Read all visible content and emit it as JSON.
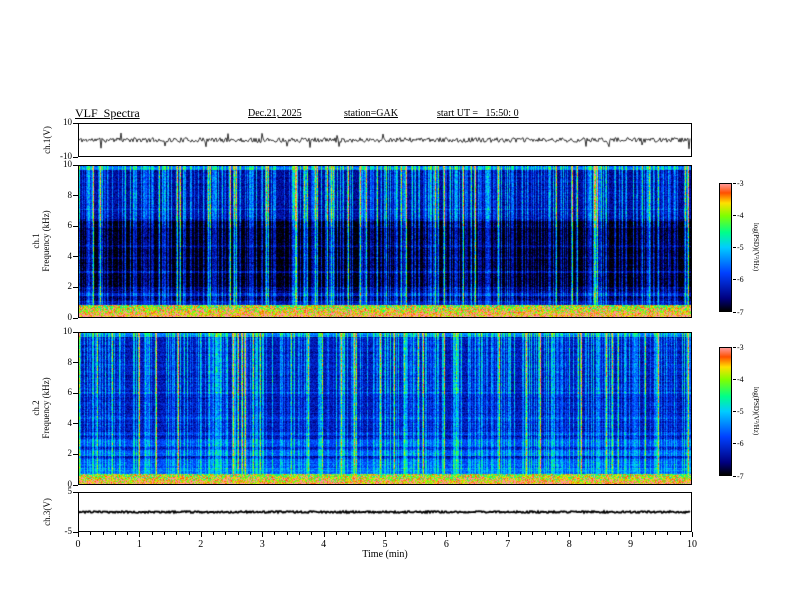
{
  "header": {
    "title": "VLF  Spectra",
    "date": "Dec.21, 2025",
    "station": "station=GAK",
    "start_ut": "start UT =   15:50: 0"
  },
  "xaxis": {
    "label": "Time  (min)",
    "min": 0,
    "max": 10,
    "major_ticks": [
      0,
      1,
      2,
      3,
      4,
      5,
      6,
      7,
      8,
      9,
      10
    ],
    "minor_step": 0.2
  },
  "colorbar": {
    "label": "log(PSD)(V²/Hz)",
    "ticks": [
      -3,
      -4,
      -5,
      -6,
      -7
    ],
    "vmin": -7,
    "vmax": -3,
    "stops": [
      [
        0.0,
        "#000000"
      ],
      [
        0.1,
        "#000080"
      ],
      [
        0.3,
        "#0040ff"
      ],
      [
        0.5,
        "#00ccff"
      ],
      [
        0.62,
        "#00ff88"
      ],
      [
        0.75,
        "#80ff00"
      ],
      [
        0.85,
        "#ffe000"
      ],
      [
        0.93,
        "#ff5000"
      ],
      [
        1.0,
        "#ff9898"
      ]
    ]
  },
  "chart_data": [
    {
      "type": "line",
      "name": "ch1-waveform",
      "ylabel": "ch.1(V)",
      "ylim": [
        -10,
        10
      ],
      "yticks": [
        10,
        -10
      ],
      "xlim": [
        0,
        10
      ],
      "description": "broadband ~±2 V noise trace with sparse impulsive spikes to ~±8 V over 0–10 min",
      "signal": {
        "noise_v": 1.6,
        "spike_rate": 0.03,
        "spike_v": 6,
        "seed": 11
      }
    },
    {
      "type": "heatmap",
      "name": "ch1-spectrogram",
      "ylabel_line1": "ch.1",
      "ylabel_line2": "Frequency  (kHz)",
      "ylim": [
        0,
        10
      ],
      "yticks": [
        0,
        2,
        4,
        6,
        8,
        10
      ],
      "xlim": [
        0,
        10
      ],
      "description": "dense vertical broadband sferic impulses (cyan/green/yellow, red at top) over dark blue/black background, darkest 2–6.5 kHz; intense red–yellow–green band below ~0.8 kHz; bright edge near 10 kHz",
      "field": {
        "seed": 7,
        "base": -6.75,
        "noise": 0.55,
        "row_noise": 0.18,
        "strong_rate": 0.1,
        "weak_rate": 0.52,
        "top_edge": 0.95,
        "bottom_band_khz": 0.8,
        "bands": [
          {
            "f0": 2.0,
            "f1": 6.4,
            "amp": -0.35
          },
          {
            "f0": 6.5,
            "f1": 10.0,
            "amp": 0.25
          },
          {
            "f0": 0.8,
            "f1": 1.1,
            "amp": 0.45
          },
          {
            "f0": 1.45,
            "f1": 1.6,
            "amp": 0.5
          },
          {
            "f0": 2.95,
            "f1": 3.05,
            "amp": 0.45
          },
          {
            "f0": 3.9,
            "f1": 4.0,
            "amp": 0.3
          },
          {
            "f0": 4.7,
            "f1": 4.8,
            "amp": 0.35
          },
          {
            "f0": 5.9,
            "f1": 6.0,
            "amp": 0.3
          },
          {
            "f0": 7.1,
            "f1": 7.2,
            "amp": 0.3
          }
        ]
      }
    },
    {
      "type": "heatmap",
      "name": "ch2-spectrogram",
      "ylabel_line1": "ch.2",
      "ylabel_line2": "Frequency  (kHz)",
      "ylim": [
        0,
        10
      ],
      "yticks": [
        0,
        2,
        4,
        6,
        8,
        10
      ],
      "xlim": [
        0,
        10
      ],
      "description": "bluer overall than ch.1; vertical sferic streaks plus horizontal cyan banding near 1–3 kHz; intense multicolor band below ~0.7 kHz; bright edge near 10 kHz",
      "field": {
        "seed": 19,
        "base": -6.35,
        "noise": 0.6,
        "row_noise": 0.3,
        "strong_rate": 0.065,
        "weak_rate": 0.5,
        "top_edge": 0.75,
        "bottom_band_khz": 0.7,
        "bands": [
          {
            "f0": 0.7,
            "f1": 1.1,
            "amp": 0.75
          },
          {
            "f0": 1.1,
            "f1": 1.7,
            "amp": 0.55
          },
          {
            "f0": 1.9,
            "f1": 2.3,
            "amp": 0.6
          },
          {
            "f0": 2.5,
            "f1": 3.0,
            "amp": 0.45
          },
          {
            "f0": 3.3,
            "f1": 3.5,
            "amp": 0.3
          },
          {
            "f0": 4.35,
            "f1": 4.5,
            "amp": 0.35
          },
          {
            "f0": 6.0,
            "f1": 6.1,
            "amp": 0.3
          }
        ]
      }
    },
    {
      "type": "line",
      "name": "ch3-waveform",
      "ylabel": "ch.3(V)",
      "ylim": [
        -5,
        5
      ],
      "yticks": [
        5,
        -5
      ],
      "xlim": [
        0,
        10
      ],
      "description": "essentially flat dense trace at ~0 V for the whole interval",
      "signal": {
        "noise_v": 0.25,
        "spike_rate": 0.0,
        "spike_v": 0,
        "seed": 23
      }
    }
  ]
}
